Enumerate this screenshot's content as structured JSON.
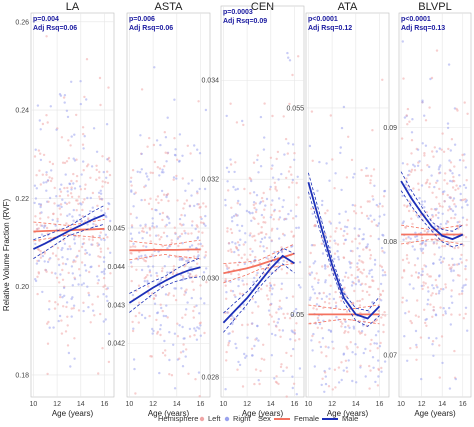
{
  "colors": {
    "female": "#f4725f",
    "male": "#1c2fb8",
    "left": "#f0a6a6",
    "right": "#9aa3ee",
    "grid": "#e6e6e6",
    "panel_border": "#bdbdbd"
  },
  "y_axis_label": "Relative Volume Fraction (RVF)",
  "legend": {
    "hemisphere_title": "Hemisphere",
    "hemisphere_items": [
      "Left",
      "Right"
    ],
    "sex_title": "Sex",
    "sex_items": [
      "Female",
      "Male"
    ]
  },
  "chart_data": [
    {
      "type": "scatter",
      "title": "LA",
      "stat_p": "p=0.004",
      "stat_r": "Adj Rsq=0.06",
      "xlabel": "Age (years)",
      "x_ticks": [
        10,
        12,
        14,
        16
      ],
      "xlim": [
        9.8,
        16.8
      ],
      "ylim": [
        0.175,
        0.262
      ],
      "y_ticks": [
        {
          "v": 0.18,
          "label": "0.18"
        },
        {
          "v": 0.2,
          "label": "0.20"
        },
        {
          "v": 0.22,
          "label": "0.22"
        },
        {
          "v": 0.24,
          "label": "0.24"
        },
        {
          "v": 0.26,
          "label": "0.26"
        }
      ],
      "scatter_center": 0.214,
      "scatter_spread": 0.014,
      "series": [
        {
          "name": "Female",
          "x": [
            10,
            11,
            12,
            13,
            14,
            15,
            16
          ],
          "y": [
            0.2125,
            0.2126,
            0.2127,
            0.2128,
            0.2129,
            0.213,
            0.2131
          ]
        },
        {
          "name": "Male",
          "x": [
            10,
            11,
            12,
            13,
            14,
            15,
            16
          ],
          "y": [
            0.2085,
            0.2098,
            0.2112,
            0.2126,
            0.2139,
            0.2152,
            0.2163
          ]
        }
      ]
    },
    {
      "type": "scatter",
      "title": "ASTA",
      "stat_p": "p=0.006",
      "stat_r": "Adj Rsq=0.06",
      "xlabel": "Age (years)",
      "x_ticks": [
        10,
        12,
        14,
        16
      ],
      "xlim": [
        9.8,
        16.8
      ],
      "ylim": [
        0.0406,
        0.0506
      ],
      "y_ticks": [
        {
          "v": 0.042,
          "label": "0.042"
        },
        {
          "v": 0.043,
          "label": "0.043"
        },
        {
          "v": 0.044,
          "label": "0.044"
        },
        {
          "v": 0.045,
          "label": "0.045"
        }
      ],
      "scatter_center": 0.0443,
      "scatter_spread": 0.0016,
      "series": [
        {
          "name": "Female",
          "x": [
            10,
            11,
            12,
            13,
            14,
            15,
            16
          ],
          "y": [
            0.04442,
            0.04442,
            0.04443,
            0.04443,
            0.04443,
            0.04444,
            0.04444
          ]
        },
        {
          "name": "Male",
          "x": [
            10,
            11,
            12,
            13,
            14,
            15,
            16
          ],
          "y": [
            0.04305,
            0.04325,
            0.04345,
            0.04362,
            0.04378,
            0.0439,
            0.04398
          ]
        }
      ]
    },
    {
      "type": "scatter",
      "title": "CEN",
      "stat_p": "p=0.0003",
      "stat_r": "Adj Rsq=0.09",
      "xlabel": "Age (years)",
      "x_ticks": [
        10,
        12,
        14,
        16
      ],
      "xlim": [
        9.8,
        16.8
      ],
      "ylim": [
        0.0276,
        0.0355
      ],
      "y_ticks": [
        {
          "v": 0.028,
          "label": "0.028"
        },
        {
          "v": 0.03,
          "label": "0.030"
        },
        {
          "v": 0.032,
          "label": "0.032"
        },
        {
          "v": 0.034,
          "label": "0.034"
        }
      ],
      "scatter_center": 0.0304,
      "scatter_spread": 0.0014,
      "series": [
        {
          "name": "Female",
          "x": [
            10,
            11,
            12,
            13,
            14,
            15,
            16
          ],
          "y": [
            0.0301,
            0.03015,
            0.0302,
            0.03027,
            0.03035,
            0.03042,
            0.0305
          ]
        },
        {
          "name": "Male",
          "x": [
            10,
            11,
            12,
            13,
            14,
            15,
            16
          ],
          "y": [
            0.0291,
            0.02935,
            0.0296,
            0.0299,
            0.0302,
            0.03045,
            0.0303
          ]
        }
      ]
    },
    {
      "type": "scatter",
      "title": "ATA",
      "stat_p": "p<0.0001",
      "stat_r": "Adj Rsq=0.12",
      "xlabel": "Age (years)",
      "x_ticks": [
        10,
        12,
        14,
        16
      ],
      "xlim": [
        9.8,
        16.8
      ],
      "ylim": [
        0.048,
        0.0573
      ],
      "y_ticks": [
        {
          "v": 0.05,
          "label": "0.05"
        },
        {
          "v": 0.055,
          "label": "0.055"
        }
      ],
      "scatter_center": 0.0508,
      "scatter_spread": 0.0016,
      "series": [
        {
          "name": "Female",
          "x": [
            10,
            11,
            12,
            13,
            14,
            15,
            16
          ],
          "y": [
            0.05,
            0.05,
            0.05,
            0.05,
            0.05,
            0.05,
            0.05
          ]
        },
        {
          "name": "Male",
          "x": [
            10,
            11,
            12,
            13,
            14,
            15,
            16
          ],
          "y": [
            0.0532,
            0.0522,
            0.0512,
            0.0504,
            0.05,
            0.0499,
            0.0502
          ]
        }
      ]
    },
    {
      "type": "scatter",
      "title": "BLVPL",
      "stat_p": "p<0.0001",
      "stat_r": "Adj Rsq=0.13",
      "xlabel": "Age (years)",
      "x_ticks": [
        10,
        12,
        14,
        16
      ],
      "xlim": [
        9.8,
        16.8
      ],
      "ylim": [
        0.0663,
        0.1001
      ],
      "y_ticks": [
        {
          "v": 0.07,
          "label": "0.07"
        },
        {
          "v": 0.08,
          "label": "0.08"
        },
        {
          "v": 0.09,
          "label": "0.09"
        }
      ],
      "scatter_center": 0.0805,
      "scatter_spread": 0.0055,
      "series": [
        {
          "name": "Female",
          "x": [
            10,
            11,
            12,
            13,
            14,
            15,
            16
          ],
          "y": [
            0.0806,
            0.0806,
            0.0806,
            0.0806,
            0.0806,
            0.0806,
            0.0806
          ]
        },
        {
          "name": "Male",
          "x": [
            10,
            11,
            12,
            13,
            14,
            15,
            16
          ],
          "y": [
            0.0853,
            0.0838,
            0.0825,
            0.0813,
            0.0805,
            0.0802,
            0.0806
          ]
        }
      ]
    }
  ]
}
